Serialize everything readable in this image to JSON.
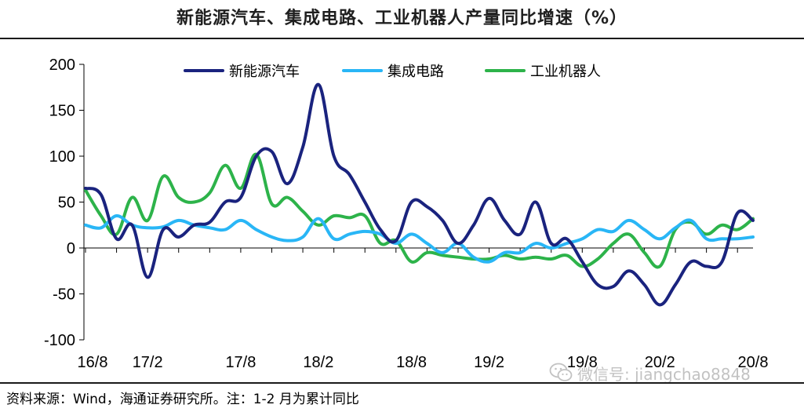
{
  "title": "新能源汽车、集成电路、工业机器人产量同比增速（%）",
  "source_note": "资料来源：Wind，海通证券研究所。注：1-2 月为累计同比",
  "watermark": {
    "icon": "wechat-icon",
    "text": "微信号: jiangchao8848"
  },
  "chart_data": {
    "type": "line",
    "title": "新能源汽车、集成电路、工业机器人产量同比增速（%）",
    "xlabel": "",
    "ylabel": "",
    "ylim": [
      -100,
      200
    ],
    "yticks": [
      -100,
      -50,
      0,
      50,
      100,
      150,
      200
    ],
    "ytick_labels": [
      "-100",
      "-50",
      "0",
      "50",
      "100",
      "150",
      "200"
    ],
    "x_periods": [
      "16/8",
      "16/10",
      "16/11",
      "16/12",
      "17/2",
      "17/3",
      "17/4",
      "17/5",
      "17/6",
      "17/7",
      "17/8",
      "17/9",
      "17/10",
      "17/11",
      "17/12",
      "18/2",
      "18/3",
      "18/4",
      "18/5",
      "18/6",
      "18/7",
      "18/8",
      "18/9",
      "18/10",
      "18/11",
      "18/12",
      "19/2",
      "19/3",
      "19/4",
      "19/5",
      "19/6",
      "19/7",
      "19/8",
      "19/9",
      "19/10",
      "19/11",
      "19/12",
      "20/2",
      "20/3",
      "20/4",
      "20/5",
      "20/6",
      "20/7",
      "20/8"
    ],
    "xtick_labels": [
      "16/8",
      "17/2",
      "17/8",
      "18/2",
      "18/8",
      "19/2",
      "19/8",
      "20/2",
      "20/8"
    ],
    "xtick_label_index": [
      0,
      4,
      10,
      15,
      21,
      26,
      32,
      37,
      43
    ],
    "legend_position": "top-center",
    "series": [
      {
        "name": "新能源汽车",
        "color": "#1a237e",
        "values": [
          65,
          58,
          10,
          25,
          -32,
          20,
          12,
          25,
          28,
          50,
          55,
          100,
          105,
          70,
          110,
          178,
          100,
          80,
          50,
          20,
          8,
          50,
          45,
          30,
          5,
          25,
          54,
          30,
          15,
          50,
          5,
          10,
          -15,
          -40,
          -42,
          -25,
          -40,
          -62,
          -40,
          -15,
          -20,
          -15,
          38,
          30
        ]
      },
      {
        "name": "集成电路",
        "color": "#29b6f6",
        "values": [
          25,
          22,
          35,
          25,
          22,
          23,
          30,
          25,
          22,
          20,
          30,
          20,
          12,
          8,
          12,
          32,
          10,
          15,
          18,
          15,
          5,
          15,
          5,
          -5,
          5,
          -10,
          -15,
          -5,
          -5,
          5,
          0,
          5,
          10,
          20,
          18,
          30,
          20,
          10,
          22,
          30,
          10,
          10,
          10,
          12
        ]
      },
      {
        "name": "工业机器人",
        "color": "#2db34a",
        "values": [
          63,
          35,
          15,
          55,
          30,
          78,
          55,
          50,
          60,
          90,
          65,
          102,
          48,
          55,
          40,
          25,
          35,
          33,
          35,
          5,
          8,
          -15,
          -5,
          -8,
          -10,
          -12,
          -12,
          -8,
          -12,
          -10,
          -12,
          -8,
          -20,
          -12,
          5,
          15,
          -5,
          -20,
          20,
          28,
          15,
          25,
          20,
          32
        ]
      }
    ]
  }
}
